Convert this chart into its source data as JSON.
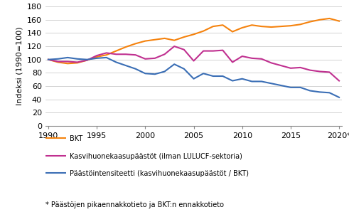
{
  "years": [
    1990,
    1991,
    1992,
    1993,
    1994,
    1995,
    1996,
    1997,
    1998,
    1999,
    2000,
    2001,
    2002,
    2003,
    2004,
    2005,
    2006,
    2007,
    2008,
    2009,
    2010,
    2011,
    2012,
    2013,
    2014,
    2015,
    2016,
    2017,
    2018,
    2019,
    2020
  ],
  "bkt": [
    100,
    96,
    94,
    95,
    99,
    104,
    107,
    113,
    119,
    124,
    128,
    130,
    132,
    129,
    134,
    138,
    143,
    150,
    152,
    142,
    148,
    152,
    150,
    149,
    150,
    151,
    153,
    157,
    160,
    162,
    158
  ],
  "emissions": [
    100,
    97,
    97,
    96,
    99,
    106,
    110,
    108,
    108,
    107,
    101,
    102,
    108,
    120,
    115,
    98,
    113,
    113,
    114,
    96,
    105,
    102,
    101,
    95,
    91,
    87,
    88,
    84,
    82,
    81,
    68
  ],
  "intensity": [
    100,
    101,
    103,
    101,
    100,
    102,
    103,
    96,
    91,
    86,
    79,
    78,
    82,
    93,
    86,
    71,
    79,
    75,
    75,
    68,
    71,
    67,
    67,
    64,
    61,
    58,
    58,
    53,
    51,
    50,
    43
  ],
  "bkt_color": "#F5820D",
  "emissions_color": "#C03090",
  "intensity_color": "#3A6EB5",
  "ylabel": "Indeksi (1990=100)",
  "xlim_min": 1990,
  "xlim_max": 2020,
  "ylim_min": 0,
  "ylim_max": 180,
  "yticks": [
    0,
    20,
    40,
    60,
    80,
    100,
    120,
    140,
    160,
    180
  ],
  "xticks": [
    1990,
    1995,
    2000,
    2005,
    2010,
    2015,
    2020
  ],
  "legend_bkt": "BKT",
  "legend_emissions": "Kasvihuonekaasupäästöt (ilman LULUCF-sektoria)",
  "legend_intensity": "Päästöintensiteetti (kasvihuonekaasupäästöt / BKT)",
  "footnote": "* Päästöjen pikaennakkotieto ja BKT:n ennakkotieto",
  "linewidth": 1.5,
  "grid_color": "#CCCCCC",
  "tick_fontsize": 8,
  "ylabel_fontsize": 8,
  "legend_fontsize": 7,
  "footnote_fontsize": 7
}
